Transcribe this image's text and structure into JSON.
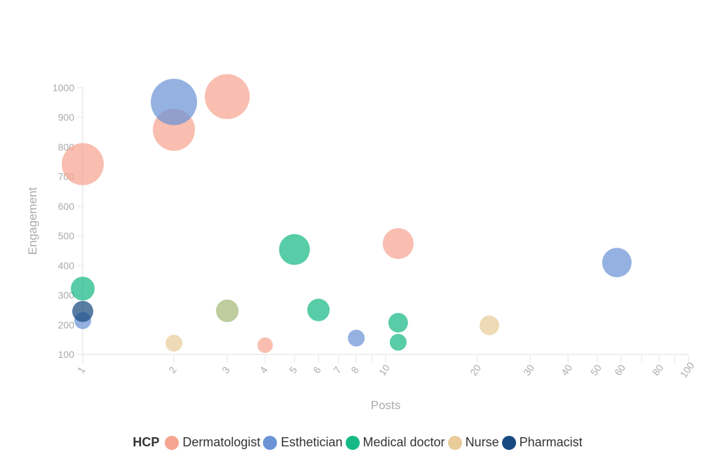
{
  "chart_data": {
    "type": "scatter",
    "subtype": "bubble",
    "xlabel": "Posts",
    "ylabel": "Engagement",
    "xscale": "log",
    "xlim": [
      1,
      100
    ],
    "ylim": [
      100,
      1000
    ],
    "xticks": [
      1,
      2,
      3,
      4,
      5,
      6,
      7,
      8,
      9,
      10,
      20,
      30,
      40,
      50,
      60,
      70,
      80,
      90,
      100
    ],
    "xtick_labels": [
      "1",
      "2",
      "3",
      "4",
      "5",
      "6",
      "7",
      "8",
      "",
      "10",
      "20",
      "30",
      "40",
      "50",
      "60",
      "",
      "80",
      "",
      "100"
    ],
    "yticks": [
      100,
      200,
      300,
      400,
      500,
      600,
      700,
      800,
      900,
      1000
    ],
    "ytick_labels": [
      "100",
      "200",
      "300",
      "400",
      "500",
      "600",
      "700",
      "800",
      "900",
      "1000"
    ],
    "grid": false,
    "legend": {
      "title": "HCP",
      "placement": "bottom"
    },
    "series": [
      {
        "name": "Dermatologist",
        "color": "#f7a592",
        "points": [
          {
            "x": 1,
            "y": 742,
            "size": 30
          },
          {
            "x": 2,
            "y": 858,
            "size": 30
          },
          {
            "x": 3,
            "y": 970,
            "size": 32
          },
          {
            "x": 11,
            "y": 474,
            "size": 22
          },
          {
            "x": 4,
            "y": 131,
            "size": 11
          }
        ]
      },
      {
        "name": "Esthetician",
        "color": "#6b93d6",
        "points": [
          {
            "x": 2,
            "y": 952,
            "size": 33
          },
          {
            "x": 1,
            "y": 214,
            "size": 12
          },
          {
            "x": 8,
            "y": 155,
            "size": 12
          },
          {
            "x": 58,
            "y": 410,
            "size": 21
          }
        ]
      },
      {
        "name": "Medical doctor",
        "color": "#16b985",
        "points": [
          {
            "x": 1,
            "y": 322,
            "size": 17
          },
          {
            "x": 5,
            "y": 454,
            "size": 22
          },
          {
            "x": 6,
            "y": 250,
            "size": 16
          },
          {
            "x": 11,
            "y": 207,
            "size": 14
          },
          {
            "x": 11,
            "y": 141,
            "size": 12
          },
          {
            "x": 3,
            "y": 247,
            "size": 16
          }
        ]
      },
      {
        "name": "Nurse",
        "color": "#e8cc9a",
        "points": [
          {
            "x": 2,
            "y": 138,
            "size": 12
          },
          {
            "x": 22,
            "y": 198,
            "size": 14
          },
          {
            "x": 3,
            "y": 247,
            "size": 16
          }
        ]
      },
      {
        "name": "Pharmacist",
        "color": "#174a7e",
        "points": [
          {
            "x": 1,
            "y": 245,
            "size": 15
          }
        ]
      }
    ]
  }
}
